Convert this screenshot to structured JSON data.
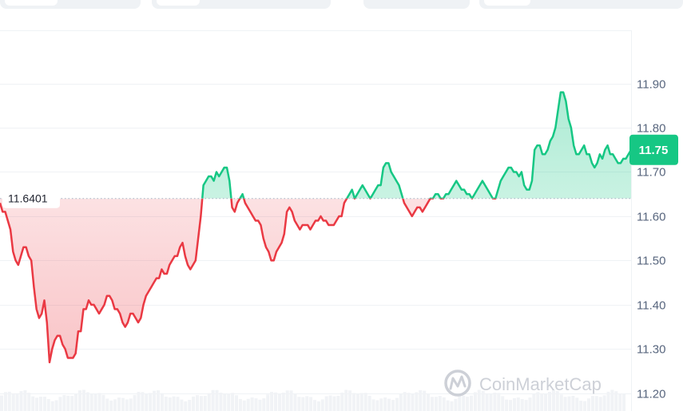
{
  "chart_data": {
    "type": "line",
    "title": "",
    "xlabel": "",
    "ylabel": "",
    "ylim": [
      11.16,
      12.02
    ],
    "y_ticks": [
      "11.90",
      "11.80",
      "11.70",
      "11.60",
      "11.50",
      "11.40",
      "11.30",
      "11.20"
    ],
    "y_tick_values": [
      11.9,
      11.8,
      11.7,
      11.6,
      11.5,
      11.4,
      11.3,
      11.2
    ],
    "reference_value": 11.6401,
    "reference_label": "11.6401",
    "current_value": 11.75,
    "current_label": "11.75",
    "colors": {
      "above": "#16c784",
      "below": "#ea3943",
      "grid": "#eff2f5",
      "ref_line": "#a6b0c3"
    },
    "grid": true,
    "values": [
      11.63,
      11.61,
      11.61,
      11.59,
      11.57,
      11.52,
      11.5,
      11.49,
      11.51,
      11.53,
      11.53,
      11.51,
      11.5,
      11.44,
      11.39,
      11.37,
      11.38,
      11.41,
      11.36,
      11.27,
      11.3,
      11.32,
      11.33,
      11.33,
      11.31,
      11.3,
      11.28,
      11.28,
      11.28,
      11.29,
      11.34,
      11.34,
      11.39,
      11.39,
      11.41,
      11.4,
      11.4,
      11.39,
      11.38,
      11.39,
      11.4,
      11.42,
      11.42,
      11.41,
      11.39,
      11.39,
      11.38,
      11.36,
      11.35,
      11.36,
      11.38,
      11.38,
      11.37,
      11.36,
      11.37,
      11.4,
      11.42,
      11.43,
      11.44,
      11.45,
      11.46,
      11.46,
      11.48,
      11.47,
      11.47,
      11.49,
      11.5,
      11.51,
      11.51,
      11.53,
      11.54,
      11.51,
      11.49,
      11.48,
      11.49,
      11.5,
      11.55,
      11.6,
      11.67,
      11.68,
      11.69,
      11.69,
      11.68,
      11.7,
      11.69,
      11.7,
      11.71,
      11.71,
      11.68,
      11.62,
      11.61,
      11.63,
      11.64,
      11.65,
      11.63,
      11.62,
      11.61,
      11.6,
      11.59,
      11.59,
      11.58,
      11.55,
      11.53,
      11.52,
      11.5,
      11.5,
      11.52,
      11.53,
      11.54,
      11.56,
      11.61,
      11.62,
      11.61,
      11.59,
      11.58,
      11.57,
      11.58,
      11.58,
      11.58,
      11.57,
      11.58,
      11.59,
      11.59,
      11.6,
      11.59,
      11.59,
      11.58,
      11.58,
      11.58,
      11.59,
      11.6,
      11.6,
      11.63,
      11.64,
      11.65,
      11.66,
      11.64,
      11.65,
      11.66,
      11.67,
      11.66,
      11.65,
      11.64,
      11.65,
      11.66,
      11.67,
      11.67,
      11.71,
      11.72,
      11.72,
      11.7,
      11.69,
      11.68,
      11.67,
      11.65,
      11.63,
      11.62,
      11.61,
      11.6,
      11.61,
      11.62,
      11.62,
      11.61,
      11.62,
      11.63,
      11.64,
      11.64,
      11.65,
      11.65,
      11.64,
      11.64,
      11.65,
      11.65,
      11.66,
      11.67,
      11.68,
      11.67,
      11.66,
      11.66,
      11.65,
      11.65,
      11.64,
      11.65,
      11.66,
      11.67,
      11.68,
      11.67,
      11.66,
      11.65,
      11.64,
      11.64,
      11.66,
      11.68,
      11.69,
      11.7,
      11.71,
      11.71,
      11.7,
      11.7,
      11.69,
      11.7,
      11.67,
      11.66,
      11.66,
      11.68,
      11.75,
      11.76,
      11.76,
      11.74,
      11.74,
      11.75,
      11.77,
      11.78,
      11.8,
      11.84,
      11.88,
      11.88,
      11.86,
      11.82,
      11.8,
      11.76,
      11.74,
      11.74,
      11.75,
      11.76,
      11.74,
      11.74,
      11.72,
      11.71,
      11.72,
      11.74,
      11.73,
      11.75,
      11.76,
      11.74,
      11.74,
      11.73,
      11.72,
      11.72,
      11.73,
      11.73,
      11.74,
      11.75
    ]
  },
  "watermark": {
    "text": "CoinMarketCap",
    "icon": "coinmarketcap-logo-icon"
  }
}
